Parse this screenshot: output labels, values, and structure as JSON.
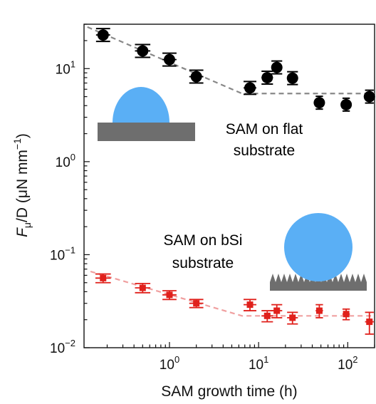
{
  "chart_data": {
    "type": "scatter",
    "xlabel": "SAM growth time (h)",
    "ylabel_main": "F",
    "ylabel_sub": "μ",
    "ylabel_rest": "/D (μN mm",
    "ylabel_sup": "−1",
    "ylabel_close": ")",
    "x_scale": "log",
    "y_scale": "log",
    "xlim": [
      0.11,
      200
    ],
    "ylim": [
      0.01,
      30
    ],
    "x_ticks": [
      {
        "value": 1,
        "base": "10",
        "exp": "0"
      },
      {
        "value": 10,
        "base": "10",
        "exp": "1"
      },
      {
        "value": 100,
        "base": "10",
        "exp": "2"
      }
    ],
    "y_ticks": [
      {
        "value": 0.01,
        "base": "10",
        "exp": "−2"
      },
      {
        "value": 0.1,
        "base": "10",
        "exp": "−1"
      },
      {
        "value": 1,
        "base": "10",
        "exp": "0"
      },
      {
        "value": 10,
        "base": "10",
        "exp": "1"
      }
    ],
    "series": [
      {
        "marker": "circle",
        "color": "#000000",
        "x": [
          0.18,
          0.5,
          1.0,
          2.0,
          8.0,
          12.5,
          16,
          24,
          48,
          96,
          175
        ],
        "y": [
          23,
          15.5,
          12.5,
          8.2,
          6.2,
          8.0,
          10.3,
          7.9,
          4.3,
          4.1,
          5.0
        ],
        "x_err_rel": [
          0.2,
          0.22,
          0.2,
          0.2,
          0.18,
          0.16,
          0.15,
          0.15,
          0.1,
          0.1,
          0.12
        ],
        "trend": {
          "x": [
            0.12,
            6.5,
            200
          ],
          "y": [
            28,
            5.4,
            5.4
          ],
          "color": "#888888"
        }
      },
      {
        "marker": "square",
        "color": "#e0201b",
        "x": [
          0.18,
          0.5,
          1.0,
          2.0,
          8.0,
          12.5,
          16,
          24,
          48,
          96,
          175
        ],
        "y": [
          0.056,
          0.044,
          0.037,
          0.03,
          0.029,
          0.022,
          0.025,
          0.021,
          0.025,
          0.023,
          0.019
        ],
        "y_err": [
          0.006,
          0.005,
          0.004,
          0.003,
          0.004,
          0.003,
          0.004,
          0.003,
          0.004,
          0.003,
          0.005
        ],
        "x_err_rel": [
          0.22,
          0.22,
          0.2,
          0.2,
          0.18,
          0.16,
          0.15,
          0.15,
          0.1,
          0.1,
          0.12
        ],
        "trend": {
          "x": [
            0.13,
            6.5,
            200
          ],
          "y": [
            0.066,
            0.022,
            0.022
          ],
          "color": "#f0a0a0"
        }
      }
    ],
    "annotations": [
      {
        "lines": [
          "SAM on flat",
          "substrate"
        ],
        "color": "#111111"
      },
      {
        "lines": [
          "SAM on bSi",
          "substrate"
        ],
        "color": "#e0201b"
      }
    ],
    "illustration_colors": {
      "droplet": "#5aaff5",
      "substrate": "#6e6e6e"
    }
  }
}
